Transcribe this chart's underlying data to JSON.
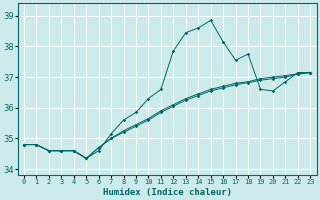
{
  "xlabel": "Humidex (Indice chaleur)",
  "background_color": "#cceaea",
  "grid_color": "#aacccc",
  "line_color": "#006666",
  "xlim": [
    -0.5,
    23.5
  ],
  "ylim": [
    33.8,
    39.4
  ],
  "yticks": [
    34,
    35,
    36,
    37,
    38,
    39
  ],
  "xtick_labels": [
    "0",
    "1",
    "2",
    "3",
    "4",
    "5",
    "6",
    "7",
    "8",
    "9",
    "10",
    "11",
    "12",
    "13",
    "14",
    "15",
    "16",
    "17",
    "18",
    "19",
    "20",
    "21",
    "22",
    "23"
  ],
  "series1": [
    34.8,
    34.8,
    34.6,
    34.6,
    34.6,
    34.35,
    34.6,
    35.15,
    35.6,
    35.85,
    36.3,
    36.6,
    37.85,
    38.45,
    38.6,
    38.85,
    38.15,
    37.55,
    37.75,
    36.6,
    36.55,
    36.85,
    37.15,
    37.15
  ],
  "series2": [
    34.8,
    34.8,
    34.6,
    34.6,
    34.6,
    34.35,
    34.7,
    35.0,
    35.25,
    35.45,
    35.65,
    35.9,
    36.1,
    36.3,
    36.45,
    36.6,
    36.7,
    36.8,
    36.85,
    36.95,
    37.0,
    37.05,
    37.1,
    37.15
  ],
  "series3": [
    34.8,
    34.8,
    34.6,
    34.6,
    34.6,
    34.35,
    34.7,
    35.0,
    35.2,
    35.4,
    35.6,
    35.85,
    36.05,
    36.25,
    36.4,
    36.55,
    36.65,
    36.75,
    36.82,
    36.9,
    36.95,
    37.0,
    37.1,
    37.15
  ]
}
